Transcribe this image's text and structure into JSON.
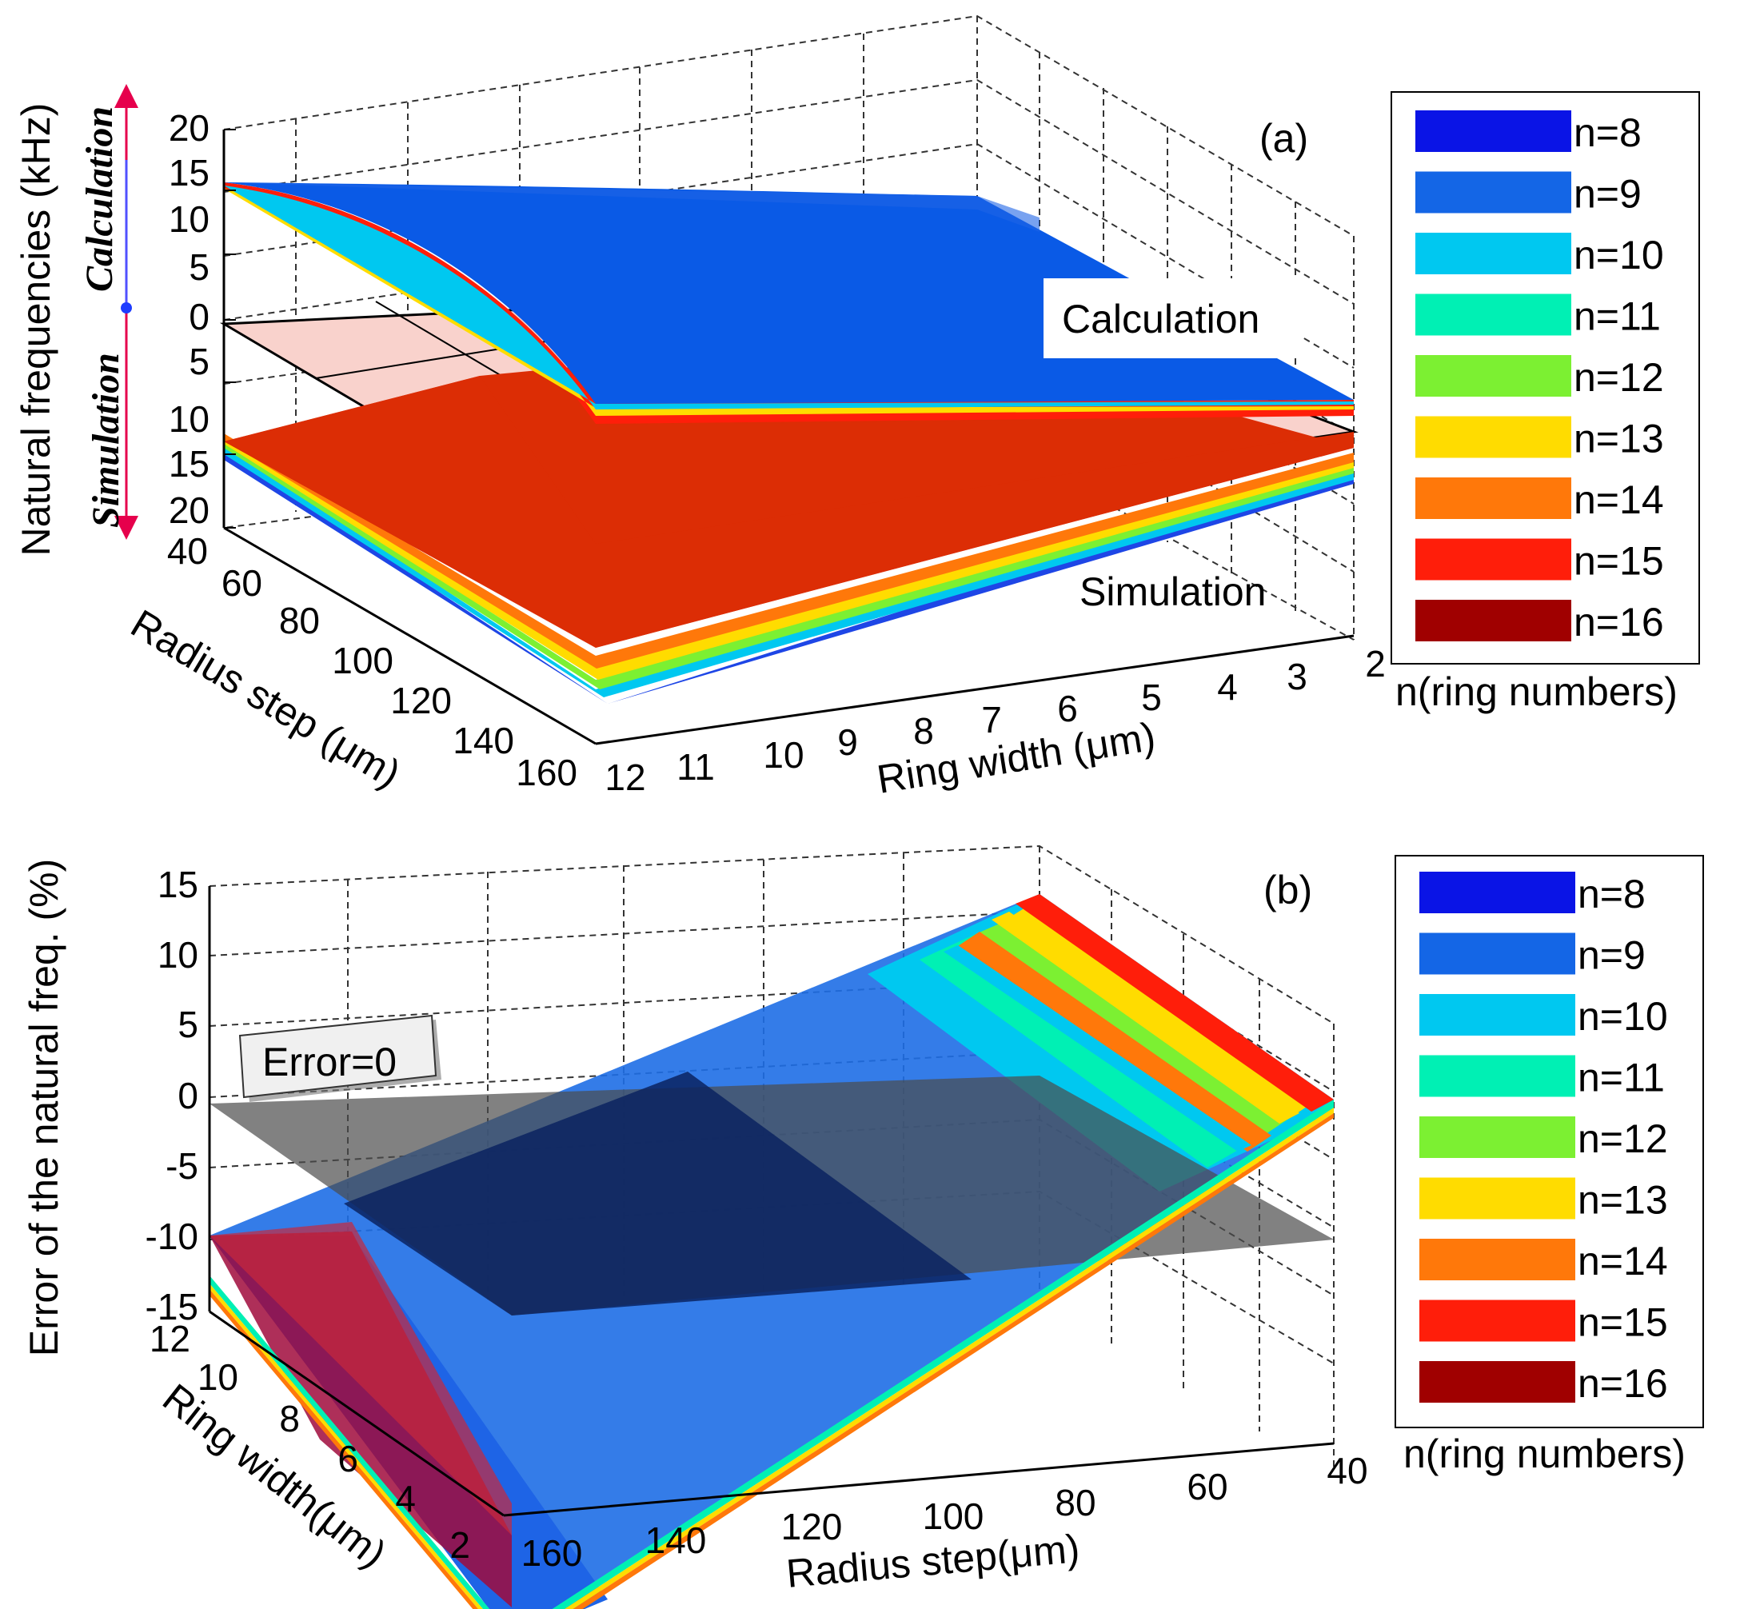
{
  "figure": {
    "panels": [
      {
        "panel_label": "(a)",
        "zlabel": "Natural frequencies (kHz)",
        "xlabel": "Radius step (μm)",
        "ylabel": "Ring width (μm)",
        "z_ticks": [
          "20",
          "15",
          "10",
          "5",
          "0",
          "5",
          "10",
          "15",
          "20"
        ],
        "x_ticks": [
          "40",
          "60",
          "80",
          "100",
          "120",
          "140",
          "160"
        ],
        "y_ticks": [
          "12",
          "11",
          "10",
          "9",
          "8",
          "7",
          "6",
          "5",
          "4",
          "3",
          "2"
        ],
        "annotations": {
          "calc_box": "Calculation",
          "sim_box": "Simulation",
          "side_calc": "Calculation",
          "side_sim": "Simulation"
        }
      },
      {
        "panel_label": "(b)",
        "zlabel": "Error of the natural freq. (%)",
        "xlabel": "Radius step(μm)",
        "ylabel": "Ring width(μm)",
        "z_ticks": [
          "15",
          "10",
          "5",
          "0",
          "-5",
          "-10",
          "-15"
        ],
        "x_ticks": [
          "160",
          "140",
          "120",
          "100",
          "80",
          "60",
          "40"
        ],
        "y_ticks": [
          "12",
          "10",
          "8",
          "6",
          "4",
          "2"
        ],
        "annotations": {
          "error_box": "Error=0"
        }
      }
    ],
    "legend": {
      "title": "n(ring numbers)",
      "entries": [
        "n=8",
        "n=9",
        "n=10",
        "n=11",
        "n=12",
        "n=13",
        "n=14",
        "n=15",
        "n=16"
      ],
      "colors": [
        "#0a14e6",
        "#1466e6",
        "#00c8f0",
        "#00f0b4",
        "#7cf032",
        "#ffdc00",
        "#ff780a",
        "#ff1e0a",
        "#a00000"
      ]
    }
  },
  "chart_data": [
    {
      "type": "surface",
      "title": "(a)",
      "xlabel": "Radius step (μm)",
      "ylabel": "Ring width (μm)",
      "zlabel": "Natural frequencies (kHz)",
      "xlim": [
        40,
        160
      ],
      "ylim": [
        2,
        12
      ],
      "zlim": [
        -20,
        20
      ],
      "series": [
        {
          "name": "Calculation",
          "description_corners": {
            "x40_y12": 13,
            "x40_y2": 13,
            "x160_y12": -10,
            "x160_y2": -10
          }
        },
        {
          "name": "Simulation",
          "description_corners": {
            "x40_y12": -12,
            "x40_y2": -12,
            "x160_y12": -19,
            "x160_y2": -10
          }
        }
      ],
      "legend": [
        "n=8",
        "n=9",
        "n=10",
        "n=11",
        "n=12",
        "n=13",
        "n=14",
        "n=15",
        "n=16"
      ],
      "grid": true
    },
    {
      "type": "surface",
      "title": "(b)",
      "xlabel": "Radius step(μm)",
      "ylabel": "Ring width(μm)",
      "zlabel": "Error of the natural freq. (%)",
      "xlim": [
        40,
        160
      ],
      "ylim": [
        2,
        12
      ],
      "zlim": [
        -15,
        15
      ],
      "reference_plane": {
        "name": "Error=0",
        "z": 0
      },
      "error_surface_corners": {
        "x160_y12": -12,
        "x40_y12": 13,
        "x160_y2": -15,
        "x40_y2": 0
      },
      "legend": [
        "n=8",
        "n=9",
        "n=10",
        "n=11",
        "n=12",
        "n=13",
        "n=14",
        "n=15",
        "n=16"
      ],
      "grid": true
    }
  ]
}
